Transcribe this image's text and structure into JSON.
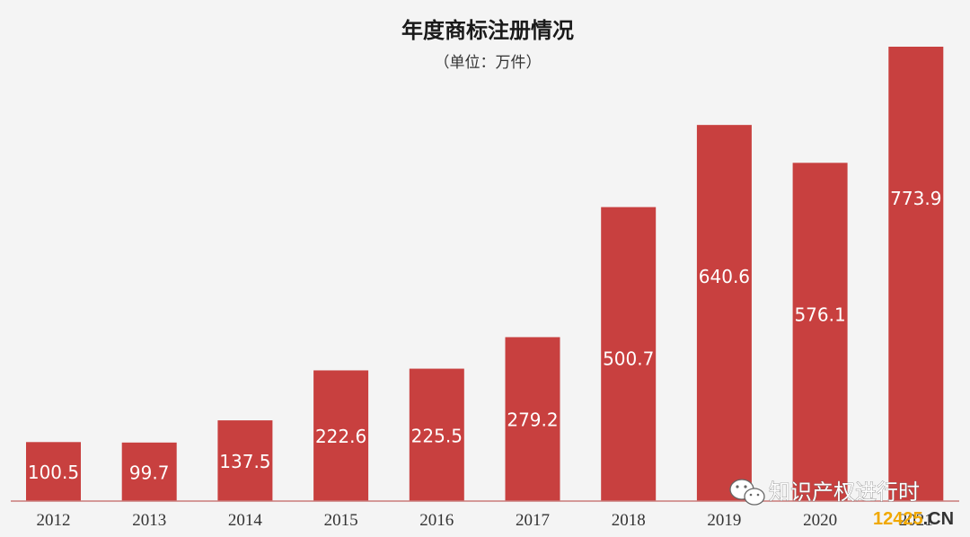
{
  "chart_data": {
    "type": "bar",
    "title": "年度商标注册情况",
    "subtitle": "（单位：万件）",
    "xlabel": "",
    "ylabel": "",
    "categories": [
      "2012",
      "2013",
      "2014",
      "2015",
      "2016",
      "2017",
      "2018",
      "2019",
      "2020",
      "2021"
    ],
    "values": [
      100.5,
      99.7,
      137.5,
      222.6,
      225.5,
      279.2,
      500.7,
      640.6,
      576.1,
      773.9
    ],
    "value_labels": [
      "100.5",
      "99.7",
      "137.5",
      "222.6",
      "225.5",
      "279.2",
      "500.7",
      "640.6",
      "576.1",
      "773.9"
    ],
    "ylim": [
      0,
      773.9
    ],
    "grid": false,
    "legend": "none",
    "bar_color": "#c8403f"
  },
  "watermark": {
    "text": "知识产权进行时",
    "icon": "wechat-icon",
    "site_digits": "12425",
    "site_suffix": ".CN",
    "site_digits_color": "#f0a800",
    "site_suffix_color": "#333333"
  }
}
